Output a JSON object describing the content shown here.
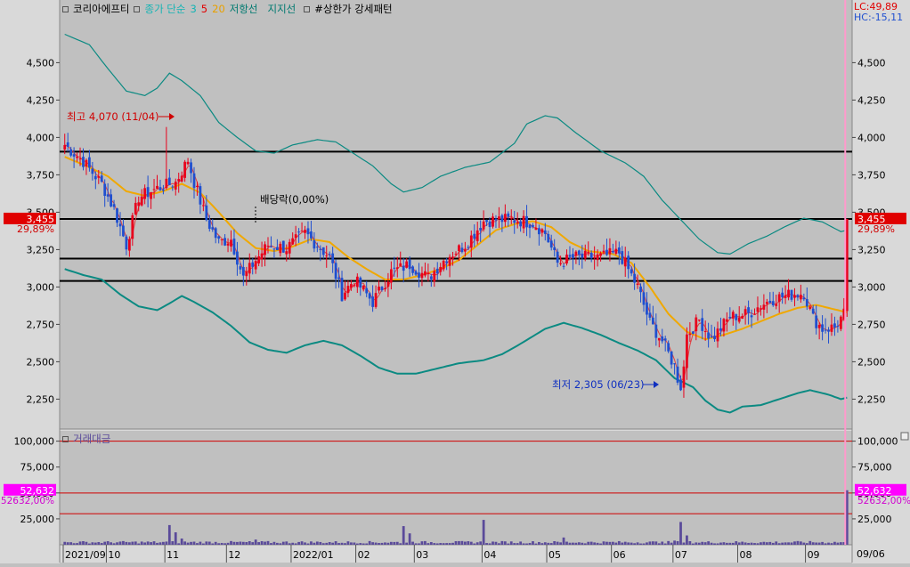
{
  "colors": {
    "bg": "#c0c0c0",
    "axis_bg": "#d9d9d9",
    "up": "#e8001c",
    "down": "#1f4fd0",
    "env": "#0b8a82",
    "ma20": "#f0a800",
    "ma3": "#e04040",
    "line": "#000000",
    "vol": "#5a4a9a",
    "cur_tag": "#e00000",
    "vol_tag": "#ff00ff",
    "cursor": "#ff99cc"
  },
  "legend": {
    "title": "코리아에프티",
    "ma_label": "종가 단순",
    "ma_periods": [
      "3",
      "5",
      "20"
    ],
    "ma_colors": [
      "#14b4b4",
      "#e00000",
      "#e8a000"
    ],
    "resistance": "저항선",
    "support": "지지선",
    "pattern": "#상한가 강세패턴"
  },
  "corner": {
    "lc": "LC:49,89",
    "hc": "HC:-15,11"
  },
  "volume_legend": "거래대금",
  "chart_data": [
    {
      "type": "candlestick",
      "name": "price",
      "ylim": [
        2050,
        4800
      ],
      "yticks": [
        "4,500",
        "4,250",
        "4,000",
        "3,750",
        "3,500",
        "3,250",
        "3,000",
        "2,750",
        "2,500",
        "2,250"
      ],
      "ytick_values": [
        4500,
        4250,
        4000,
        3750,
        3500,
        3250,
        3000,
        2750,
        2500,
        2250
      ],
      "hlines": [
        3905,
        3455,
        3190,
        3040
      ],
      "current": {
        "label": "3,455",
        "pct": "29,89%",
        "value": 3455
      },
      "annotations": [
        {
          "text": "최고 4,070 (11/04)",
          "value": 4070
        },
        {
          "text": "최저 2,305 (06/23)",
          "value": 2305
        },
        {
          "text": "배당락(0,00%)",
          "value": 3455
        }
      ],
      "anchors": [
        [
          0,
          3950
        ],
        [
          6,
          3840
        ],
        [
          12,
          3690
        ],
        [
          16,
          3520
        ],
        [
          20,
          3280
        ],
        [
          24,
          3600
        ],
        [
          30,
          3660
        ],
        [
          36,
          3700
        ],
        [
          40,
          3850
        ],
        [
          42,
          3700
        ],
        [
          46,
          3450
        ],
        [
          50,
          3300
        ],
        [
          54,
          3320
        ],
        [
          58,
          3060
        ],
        [
          62,
          3180
        ],
        [
          66,
          3280
        ],
        [
          72,
          3260
        ],
        [
          78,
          3360
        ],
        [
          82,
          3280
        ],
        [
          86,
          3200
        ],
        [
          90,
          2950
        ],
        [
          94,
          3050
        ],
        [
          100,
          2900
        ],
        [
          106,
          3100
        ],
        [
          112,
          3150
        ],
        [
          118,
          3060
        ],
        [
          124,
          3200
        ],
        [
          130,
          3280
        ],
        [
          136,
          3440
        ],
        [
          140,
          3450
        ],
        [
          146,
          3450
        ],
        [
          152,
          3430
        ],
        [
          156,
          3360
        ],
        [
          160,
          3160
        ],
        [
          166,
          3200
        ],
        [
          174,
          3200
        ],
        [
          180,
          3230
        ],
        [
          186,
          3000
        ],
        [
          190,
          2760
        ],
        [
          194,
          2640
        ],
        [
          198,
          2470
        ],
        [
          200,
          2310
        ],
        [
          202,
          2680
        ],
        [
          206,
          2780
        ],
        [
          210,
          2650
        ],
        [
          216,
          2800
        ],
        [
          222,
          2820
        ],
        [
          226,
          2880
        ],
        [
          230,
          2920
        ],
        [
          236,
          2950
        ],
        [
          240,
          2960
        ],
        [
          243,
          2790
        ],
        [
          246,
          2720
        ],
        [
          250,
          2730
        ],
        [
          253,
          2820
        ],
        [
          254,
          3455
        ]
      ],
      "envelope_upper": [
        [
          0,
          4690
        ],
        [
          8,
          4620
        ],
        [
          14,
          4460
        ],
        [
          20,
          4310
        ],
        [
          26,
          4280
        ],
        [
          30,
          4330
        ],
        [
          34,
          4430
        ],
        [
          38,
          4380
        ],
        [
          44,
          4280
        ],
        [
          50,
          4100
        ],
        [
          56,
          4000
        ],
        [
          62,
          3910
        ],
        [
          68,
          3895
        ],
        [
          74,
          3950
        ],
        [
          82,
          3985
        ],
        [
          88,
          3970
        ],
        [
          94,
          3890
        ],
        [
          100,
          3810
        ],
        [
          106,
          3690
        ],
        [
          110,
          3635
        ],
        [
          116,
          3665
        ],
        [
          122,
          3740
        ],
        [
          130,
          3800
        ],
        [
          138,
          3835
        ],
        [
          146,
          3960
        ],
        [
          150,
          4090
        ],
        [
          156,
          4145
        ],
        [
          160,
          4130
        ],
        [
          166,
          4030
        ],
        [
          174,
          3910
        ],
        [
          182,
          3830
        ],
        [
          188,
          3740
        ],
        [
          194,
          3580
        ],
        [
          200,
          3450
        ],
        [
          206,
          3320
        ],
        [
          212,
          3230
        ],
        [
          216,
          3220
        ],
        [
          222,
          3290
        ],
        [
          228,
          3340
        ],
        [
          234,
          3405
        ],
        [
          240,
          3460
        ],
        [
          246,
          3435
        ],
        [
          252,
          3370
        ],
        [
          254,
          3380
        ]
      ],
      "envelope_lower": [
        [
          0,
          3120
        ],
        [
          6,
          3080
        ],
        [
          12,
          3050
        ],
        [
          18,
          2950
        ],
        [
          24,
          2870
        ],
        [
          30,
          2845
        ],
        [
          34,
          2890
        ],
        [
          38,
          2940
        ],
        [
          42,
          2900
        ],
        [
          48,
          2830
        ],
        [
          54,
          2740
        ],
        [
          60,
          2630
        ],
        [
          66,
          2580
        ],
        [
          72,
          2560
        ],
        [
          78,
          2610
        ],
        [
          84,
          2640
        ],
        [
          90,
          2610
        ],
        [
          96,
          2540
        ],
        [
          102,
          2460
        ],
        [
          108,
          2420
        ],
        [
          114,
          2420
        ],
        [
          120,
          2450
        ],
        [
          128,
          2490
        ],
        [
          136,
          2510
        ],
        [
          142,
          2550
        ],
        [
          148,
          2620
        ],
        [
          156,
          2720
        ],
        [
          162,
          2760
        ],
        [
          168,
          2725
        ],
        [
          174,
          2680
        ],
        [
          180,
          2625
        ],
        [
          186,
          2575
        ],
        [
          192,
          2510
        ],
        [
          198,
          2390
        ],
        [
          204,
          2330
        ],
        [
          208,
          2240
        ],
        [
          212,
          2180
        ],
        [
          216,
          2160
        ],
        [
          220,
          2200
        ],
        [
          226,
          2210
        ],
        [
          232,
          2250
        ],
        [
          238,
          2290
        ],
        [
          242,
          2310
        ],
        [
          248,
          2280
        ],
        [
          252,
          2250
        ],
        [
          254,
          2260
        ]
      ],
      "ma20": [
        [
          0,
          3870
        ],
        [
          8,
          3800
        ],
        [
          14,
          3740
        ],
        [
          20,
          3640
        ],
        [
          26,
          3610
        ],
        [
          32,
          3640
        ],
        [
          38,
          3690
        ],
        [
          44,
          3630
        ],
        [
          50,
          3500
        ],
        [
          56,
          3360
        ],
        [
          62,
          3260
        ],
        [
          68,
          3240
        ],
        [
          74,
          3270
        ],
        [
          80,
          3320
        ],
        [
          86,
          3300
        ],
        [
          92,
          3200
        ],
        [
          98,
          3120
        ],
        [
          104,
          3050
        ],
        [
          110,
          3050
        ],
        [
          116,
          3080
        ],
        [
          122,
          3120
        ],
        [
          128,
          3180
        ],
        [
          134,
          3280
        ],
        [
          140,
          3380
        ],
        [
          146,
          3420
        ],
        [
          152,
          3440
        ],
        [
          158,
          3400
        ],
        [
          164,
          3300
        ],
        [
          170,
          3240
        ],
        [
          178,
          3220
        ],
        [
          184,
          3160
        ],
        [
          190,
          3000
        ],
        [
          196,
          2820
        ],
        [
          202,
          2700
        ],
        [
          208,
          2650
        ],
        [
          214,
          2680
        ],
        [
          220,
          2720
        ],
        [
          226,
          2770
        ],
        [
          232,
          2820
        ],
        [
          238,
          2860
        ],
        [
          244,
          2880
        ],
        [
          250,
          2850
        ],
        [
          254,
          2830
        ]
      ]
    },
    {
      "type": "bar",
      "name": "trading-value",
      "ylim": [
        0,
        110000
      ],
      "yticks": [
        "100,000",
        "75,000",
        "50,000",
        "25,000"
      ],
      "ytick_values": [
        100000,
        75000,
        50000,
        25000
      ],
      "hlines": [
        100000,
        50000,
        30000
      ],
      "current": {
        "label": "52,632",
        "pct": "52632,00%",
        "value": 52632
      },
      "base_level": 2000,
      "spikes": [
        [
          34,
          19000
        ],
        [
          36,
          12000
        ],
        [
          38,
          6000
        ],
        [
          62,
          5000
        ],
        [
          110,
          18000
        ],
        [
          112,
          11000
        ],
        [
          136,
          24000
        ],
        [
          162,
          7000
        ],
        [
          194,
          3000
        ],
        [
          198,
          4000
        ],
        [
          200,
          22000
        ],
        [
          202,
          9000
        ],
        [
          254,
          52632
        ]
      ]
    }
  ],
  "x_axis": {
    "bars": 255,
    "labels": [
      {
        "text": "2021/09",
        "bar": 0
      },
      {
        "text": "10",
        "bar": 14
      },
      {
        "text": "11",
        "bar": 33
      },
      {
        "text": "12",
        "bar": 53
      },
      {
        "text": "2022/01",
        "bar": 74
      },
      {
        "text": "02",
        "bar": 95
      },
      {
        "text": "03",
        "bar": 114
      },
      {
        "text": "04",
        "bar": 136
      },
      {
        "text": "05",
        "bar": 157
      },
      {
        "text": "06",
        "bar": 178
      },
      {
        "text": "07",
        "bar": 198
      },
      {
        "text": "08",
        "bar": 219
      },
      {
        "text": "09",
        "bar": 241
      }
    ],
    "right_label": "09/06"
  }
}
